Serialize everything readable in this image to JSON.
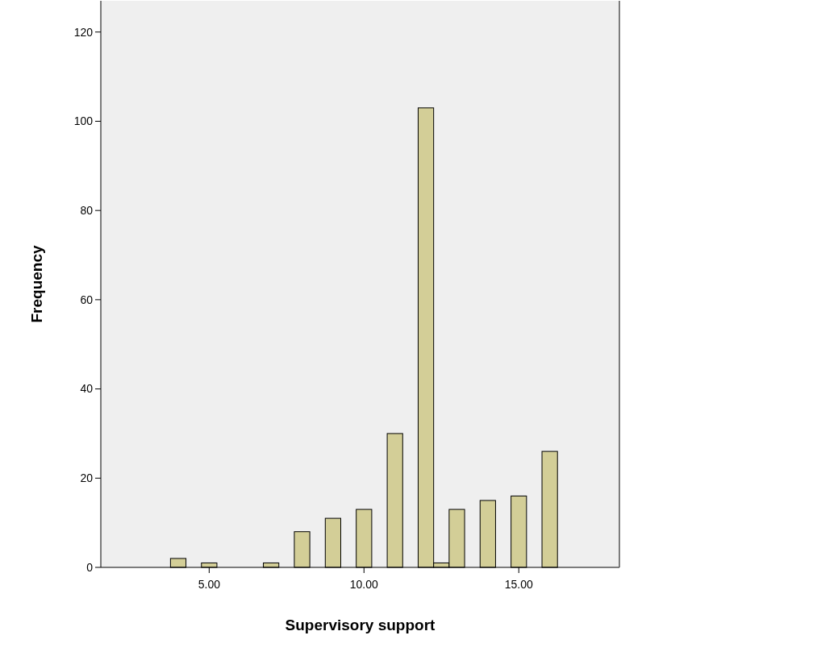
{
  "chart_data": {
    "type": "histogram",
    "xlabel": "Supervisory support",
    "ylabel": "Frequency",
    "bins": [
      3.75,
      4.25,
      4.75,
      5.25,
      5.75,
      6.25,
      6.75,
      7.25,
      7.75,
      8.25,
      8.75,
      9.25,
      9.75,
      10.25,
      10.75,
      11.25,
      11.75,
      12.25,
      12.75,
      13.25,
      13.75,
      14.25,
      14.75,
      15.25,
      15.75,
      16.25
    ],
    "values": [
      2,
      0,
      1,
      0,
      0,
      0,
      1,
      0,
      8,
      0,
      11,
      0,
      13,
      0,
      30,
      0,
      103,
      1,
      13,
      0,
      15,
      0,
      16,
      0,
      26
    ],
    "color": "#d3ce97",
    "xlim": [
      1.5,
      18.25
    ],
    "xticks": [
      {
        "value": 5,
        "label": "5.00"
      },
      {
        "value": 10,
        "label": "10.00"
      },
      {
        "value": 15,
        "label": "15.00"
      }
    ],
    "ylim": [
      0,
      127
    ],
    "yticks": [
      0,
      20,
      40,
      60,
      80,
      100,
      120
    ],
    "grid": false
  }
}
